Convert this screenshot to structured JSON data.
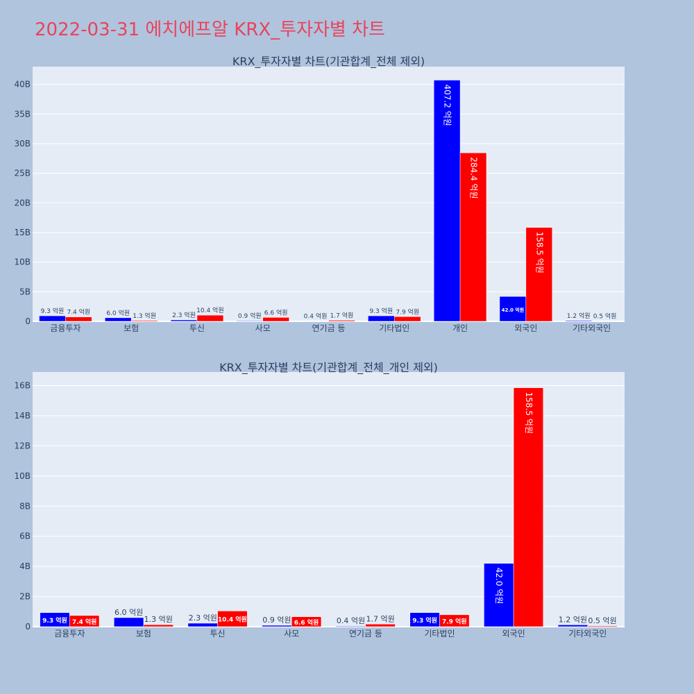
{
  "page": {
    "title": "2022-03-31 에치에프알 KRX_투자자별 차트"
  },
  "colors": {
    "buy": "#0000ff",
    "sell": "#ff0000",
    "plot_bg": "#e5ecf6",
    "page_bg": "#b0c4de",
    "title": "#e8445a"
  },
  "chart_data": [
    {
      "type": "bar",
      "title": "KRX_투자자별 차트(기관합계_전체 제외)",
      "categories": [
        "금융투자",
        "보험",
        "투신",
        "사모",
        "연기금 등",
        "기타법인",
        "개인",
        "외국인",
        "기타외국인"
      ],
      "series": [
        {
          "values": [
            0.93,
            0.6,
            0.23,
            0.09,
            0.04,
            0.93,
            40.72,
            4.2,
            0.12
          ],
          "labels": [
            "9.3 억원",
            "6.0 억원",
            "2.3 억원",
            "0.9 억원",
            "0.4 억원",
            "9.3 억원",
            "407.2 억원",
            "42.0 억원",
            "1.2 억원"
          ]
        },
        {
          "values": [
            0.74,
            0.13,
            1.04,
            0.66,
            0.17,
            0.79,
            28.44,
            15.85,
            0.05
          ],
          "labels": [
            "7.4 억원",
            "1.3 억원",
            "10.4 억원",
            "6.6 억원",
            "1.7 억원",
            "7.9 억원",
            "284.4 억원",
            "158.5 억원",
            "0.5 억원"
          ]
        }
      ],
      "ylim": [
        0,
        43
      ],
      "yticks": [
        "0",
        "5B",
        "10B",
        "15B",
        "20B",
        "25B",
        "30B",
        "35B",
        "40B"
      ],
      "ytick_values": [
        0,
        5,
        10,
        15,
        20,
        25,
        30,
        35,
        40
      ],
      "grid": true
    },
    {
      "type": "bar",
      "title": "KRX_투자자별 차트(기관합계_전체_개인 제외)",
      "categories": [
        "금융투자",
        "보험",
        "투신",
        "사모",
        "연기금 등",
        "기타법인",
        "외국인",
        "기타외국인"
      ],
      "series": [
        {
          "values": [
            0.93,
            0.6,
            0.23,
            0.09,
            0.04,
            0.93,
            4.2,
            0.12
          ],
          "labels": [
            "9.3 억원",
            "6.0 억원",
            "2.3 억원",
            "0.9 억원",
            "0.4 억원",
            "9.3 억원",
            "42.0 억원",
            "1.2 억원"
          ]
        },
        {
          "values": [
            0.74,
            0.13,
            1.04,
            0.66,
            0.17,
            0.79,
            15.85,
            0.05
          ],
          "labels": [
            "7.4 억원",
            "1.3 억원",
            "10.4 억원",
            "6.6 억원",
            "1.7 억원",
            "7.9 억원",
            "158.5 억원",
            "0.5 억원"
          ]
        }
      ],
      "ylim": [
        0,
        16.9
      ],
      "yticks": [
        "0",
        "2B",
        "4B",
        "6B",
        "8B",
        "10B",
        "12B",
        "14B",
        "16B"
      ],
      "ytick_values": [
        0,
        2,
        4,
        6,
        8,
        10,
        12,
        14,
        16
      ],
      "grid": true
    }
  ]
}
